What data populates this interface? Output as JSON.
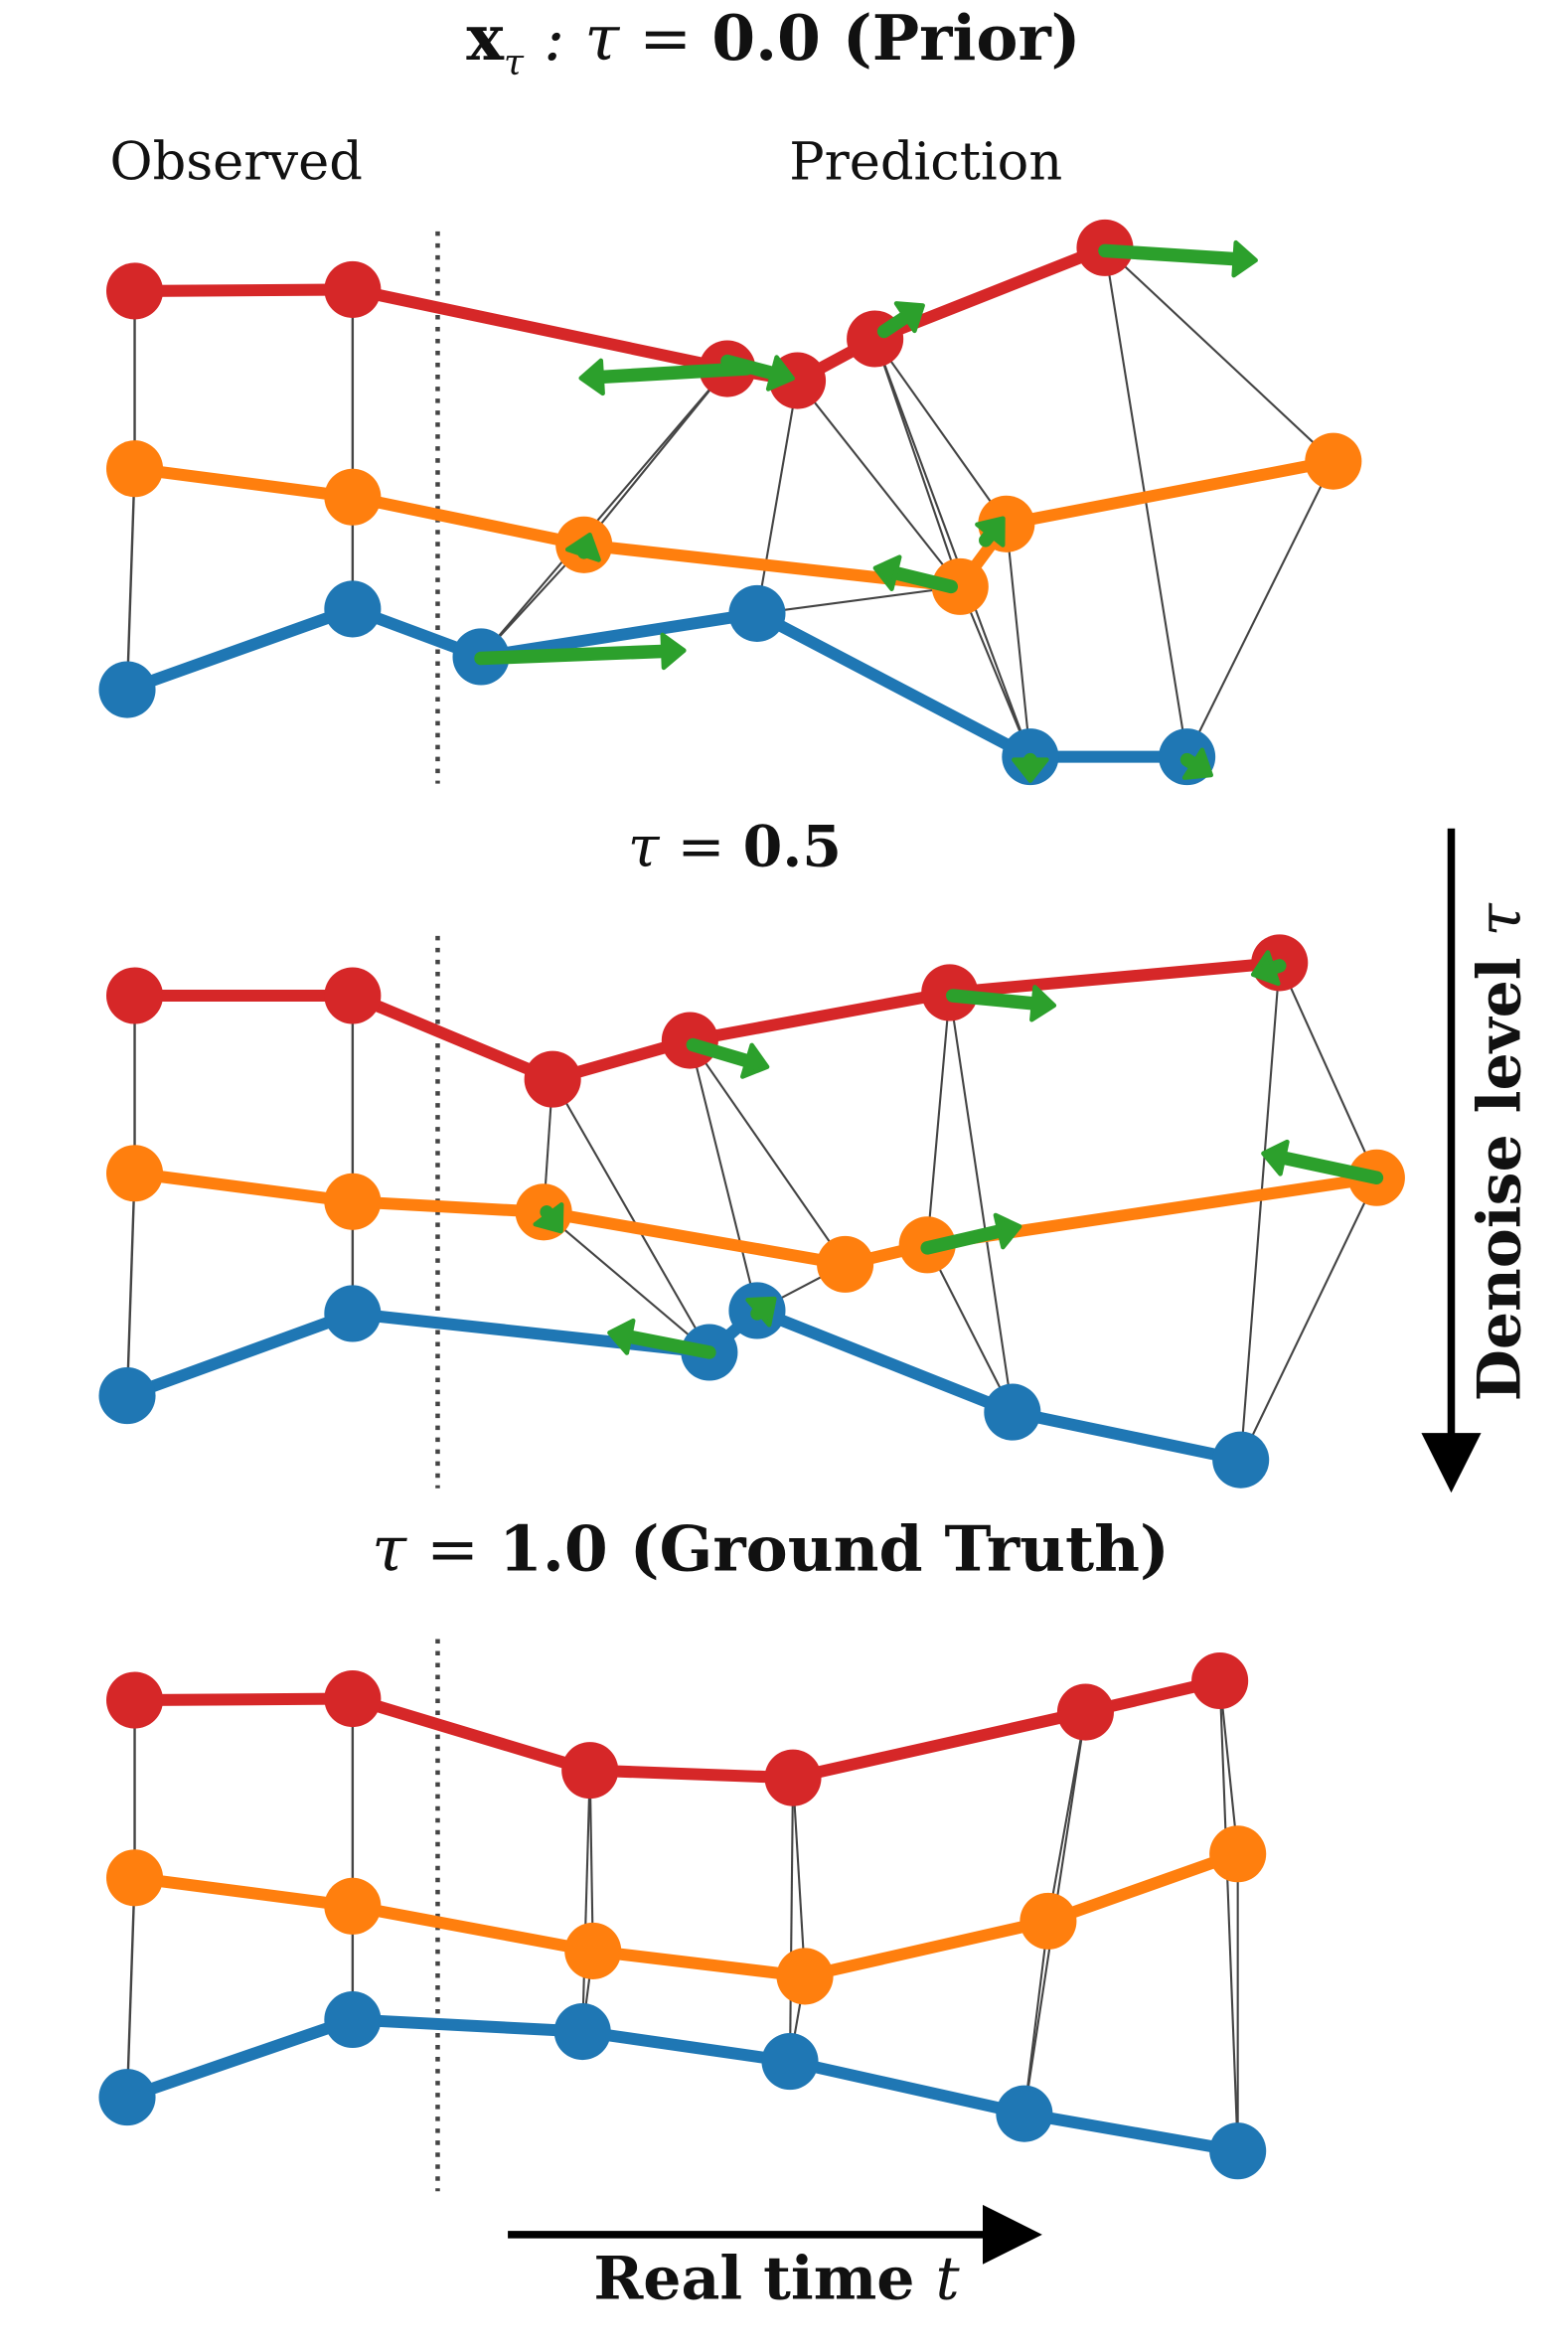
{
  "figure": {
    "panels": [
      {
        "title": {
          "math": "x",
          "sub": "τ",
          "rest": " : τ = ",
          "value": "0.0 (Prior)"
        },
        "observed_label": "Observed",
        "prediction_label": "Prediction",
        "observed": {
          "red": [
            [
              90,
              195
            ],
            [
              236,
              194
            ]
          ],
          "orange": [
            [
              90,
              314
            ],
            [
              236,
              333
            ]
          ],
          "blue": [
            [
              85,
              462
            ],
            [
              236,
              408
            ]
          ]
        },
        "prediction": {
          "red": [
            [
              487,
              247
            ],
            [
              534,
              255
            ],
            [
              586,
              227
            ],
            [
              740,
              166
            ]
          ],
          "orange": [
            [
              391,
              365
            ],
            [
              643,
              393
            ],
            [
              674,
              351
            ],
            [
              893,
              309
            ]
          ],
          "blue": [
            [
              322,
              440
            ],
            [
              507,
              411
            ],
            [
              690,
              507
            ],
            [
              795,
              507
            ]
          ]
        },
        "links": [
          [
            [
              740,
              166
            ],
            [
              795,
              507
            ]
          ],
          [
            [
              740,
              166
            ],
            [
              893,
              309
            ]
          ],
          [
            [
              586,
              227
            ],
            [
              674,
              351
            ]
          ],
          [
            [
              586,
              227
            ],
            [
              690,
              507
            ]
          ],
          [
            [
              586,
              227
            ],
            [
              643,
              393
            ]
          ],
          [
            [
              534,
              255
            ],
            [
              643,
              393
            ]
          ],
          [
            [
              534,
              255
            ],
            [
              507,
              411
            ]
          ],
          [
            [
              487,
              247
            ],
            [
              322,
              440
            ]
          ],
          [
            [
              487,
              247
            ],
            [
              391,
              365
            ]
          ],
          [
            [
              674,
              351
            ],
            [
              690,
              507
            ]
          ],
          [
            [
              893,
              309
            ],
            [
              795,
              507
            ]
          ],
          [
            [
              643,
              393
            ],
            [
              690,
              507
            ]
          ],
          [
            [
              643,
              393
            ],
            [
              507,
              411
            ]
          ],
          [
            [
              391,
              365
            ],
            [
              322,
              440
            ]
          ]
        ],
        "arrows": [
          [
            [
              500,
              247
            ],
            [
              395,
              253
            ]
          ],
          [
            [
              487,
              242
            ],
            [
              525,
              252
            ]
          ],
          [
            [
              592,
              222
            ],
            [
              613,
              208
            ]
          ],
          [
            [
              740,
              168
            ],
            [
              835,
              174
            ]
          ],
          [
            [
              391,
              370
            ],
            [
              393,
              364
            ]
          ],
          [
            [
              637,
              393
            ],
            [
              592,
              382
            ]
          ],
          [
            [
              660,
              362
            ],
            [
              668,
              352
            ]
          ],
          [
            [
              322,
              441
            ],
            [
              452,
              436
            ]
          ],
          [
            [
              690,
              509
            ],
            [
              690,
              517
            ]
          ],
          [
            [
              795,
              509
            ],
            [
              806,
              516
            ]
          ]
        ]
      },
      {
        "title": {
          "prefix": "τ = ",
          "value": "0.5"
        },
        "observed": {
          "red": [
            [
              90,
              667
            ],
            [
              236,
              667
            ]
          ],
          "orange": [
            [
              90,
              786
            ],
            [
              236,
              805
            ]
          ],
          "blue": [
            [
              85,
              935
            ],
            [
              236,
              880
            ]
          ]
        },
        "prediction": {
          "red": [
            [
              370,
              723
            ],
            [
              462,
              697
            ],
            [
              636,
              665
            ],
            [
              857,
              645
            ]
          ],
          "orange": [
            [
              364,
              812
            ],
            [
              566,
              847
            ],
            [
              621,
              834
            ],
            [
              922,
              789
            ]
          ],
          "blue": [
            [
              475,
              906
            ],
            [
              507,
              878
            ],
            [
              678,
              946
            ],
            [
              831,
              978
            ]
          ]
        },
        "links": [
          [
            [
              370,
              723
            ],
            [
              364,
              812
            ]
          ],
          [
            [
              370,
              723
            ],
            [
              475,
              906
            ]
          ],
          [
            [
              462,
              697
            ],
            [
              507,
              878
            ]
          ],
          [
            [
              462,
              697
            ],
            [
              566,
              847
            ]
          ],
          [
            [
              636,
              665
            ],
            [
              621,
              834
            ]
          ],
          [
            [
              636,
              665
            ],
            [
              678,
              946
            ]
          ],
          [
            [
              857,
              645
            ],
            [
              831,
              978
            ]
          ],
          [
            [
              857,
              645
            ],
            [
              922,
              789
            ]
          ],
          [
            [
              364,
              812
            ],
            [
              475,
              906
            ]
          ],
          [
            [
              922,
              789
            ],
            [
              831,
              978
            ]
          ],
          [
            [
              621,
              834
            ],
            [
              678,
              946
            ]
          ],
          [
            [
              566,
              847
            ],
            [
              507,
              878
            ]
          ]
        ],
        "arrows": [
          [
            [
              464,
              700
            ],
            [
              508,
              713
            ]
          ],
          [
            [
              638,
              667
            ],
            [
              700,
              673
            ]
          ],
          [
            [
              857,
              647
            ],
            [
              845,
              651
            ]
          ],
          [
            [
              366,
              812
            ],
            [
              372,
              820
            ]
          ],
          [
            [
              621,
              836
            ],
            [
              677,
              823
            ]
          ],
          [
            [
              922,
              789
            ],
            [
              852,
              774
            ]
          ],
          [
            [
              475,
              906
            ],
            [
              414,
              894
            ]
          ],
          [
            [
              507,
              880
            ],
            [
              514,
              874
            ]
          ]
        ]
      },
      {
        "title": {
          "prefix": "τ = ",
          "value": "1.0 (Ground Truth)"
        },
        "observed": {
          "red": [
            [
              90,
              1139
            ],
            [
              236,
              1138
            ]
          ],
          "orange": [
            [
              90,
              1258
            ],
            [
              236,
              1277
            ]
          ],
          "blue": [
            [
              85,
              1405
            ],
            [
              236,
              1353
            ]
          ]
        },
        "prediction": {
          "red": [
            [
              395,
              1186
            ],
            [
              531,
              1191
            ],
            [
              727,
              1147
            ],
            [
              817,
              1126
            ]
          ],
          "orange": [
            [
              397,
              1307
            ],
            [
              539,
              1324
            ],
            [
              702,
              1287
            ],
            [
              829,
              1242
            ]
          ],
          "blue": [
            [
              390,
              1361
            ],
            [
              529,
              1381
            ],
            [
              686,
              1416
            ],
            [
              829,
              1441
            ]
          ]
        },
        "links": [
          [
            [
              395,
              1186
            ],
            [
              397,
              1307
            ]
          ],
          [
            [
              395,
              1186
            ],
            [
              390,
              1361
            ]
          ],
          [
            [
              397,
              1307
            ],
            [
              390,
              1361
            ]
          ],
          [
            [
              531,
              1191
            ],
            [
              539,
              1324
            ]
          ],
          [
            [
              531,
              1191
            ],
            [
              529,
              1381
            ]
          ],
          [
            [
              539,
              1324
            ],
            [
              529,
              1381
            ]
          ],
          [
            [
              727,
              1147
            ],
            [
              702,
              1287
            ]
          ],
          [
            [
              727,
              1147
            ],
            [
              686,
              1416
            ]
          ],
          [
            [
              702,
              1287
            ],
            [
              686,
              1416
            ]
          ],
          [
            [
              817,
              1126
            ],
            [
              829,
              1242
            ]
          ],
          [
            [
              817,
              1126
            ],
            [
              829,
              1441
            ]
          ],
          [
            [
              829,
              1242
            ],
            [
              829,
              1441
            ]
          ]
        ],
        "arrows": []
      }
    ],
    "side_axis_label": {
      "text": "Denoise level ",
      "symbol": "τ"
    },
    "bottom_axis_label": {
      "text": "Real time ",
      "symbol": "t"
    },
    "colors": {
      "red": "#d62728",
      "orange": "#ff7f0e",
      "blue": "#1f77b4",
      "arrow": "#2ca02c",
      "link": "#444444",
      "separator": "#444444"
    }
  }
}
